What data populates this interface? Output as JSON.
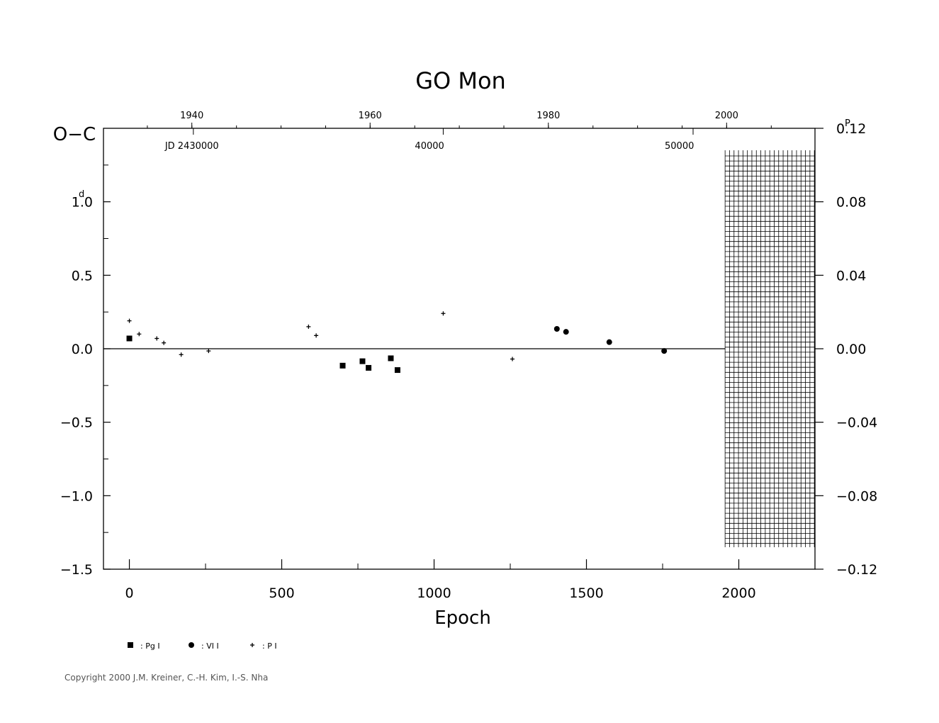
{
  "chart_data": {
    "type": "scatter",
    "title": "GO Mon",
    "xlabel": "Epoch",
    "ylabel": "O−C",
    "y_unit": "d",
    "y2_unit": "P",
    "xlim": [
      -85,
      2250
    ],
    "ylim": [
      -1.5,
      1.5
    ],
    "y2lim": [
      -0.12,
      0.12
    ],
    "x_ticks": [
      0,
      500,
      1000,
      1500,
      2000
    ],
    "y_ticks": [
      -1.5,
      -1.0,
      -0.5,
      0.0,
      0.5,
      1.0
    ],
    "y_tick_labels": [
      "−1.5",
      "−1.0",
      "−0.5",
      "0.0",
      "0.5",
      "1.0"
    ],
    "y2_ticks": [
      -0.12,
      -0.08,
      -0.04,
      0.0,
      0.04,
      0.08,
      0.12
    ],
    "y2_tick_labels": [
      "−0.12",
      "−0.08",
      "−0.04",
      "0.00",
      "0.04",
      "0.08",
      "0.12"
    ],
    "year_ticks": [
      {
        "label": "1940",
        "epoch": 205
      },
      {
        "label": "1960",
        "epoch": 790
      },
      {
        "label": "1980",
        "epoch": 1375
      },
      {
        "label": "2000",
        "epoch": 1960
      }
    ],
    "jd_ticks": [
      {
        "label": "JD  2430000",
        "epoch": 210
      },
      {
        "label": "40000",
        "epoch": 1030
      },
      {
        "label": "50000",
        "epoch": 1850
      }
    ],
    "zero_line": true,
    "future_region_start_epoch": 1955,
    "series": [
      {
        "name": ": Pg I",
        "marker": "square",
        "x": [
          0,
          700,
          765,
          785,
          858,
          880
        ],
        "y": [
          0.07,
          -0.115,
          -0.085,
          -0.13,
          -0.065,
          -0.145
        ]
      },
      {
        "name": ": VI I",
        "marker": "circle",
        "x": [
          1403,
          1433,
          1575,
          1755
        ],
        "y": [
          0.135,
          0.115,
          0.045,
          -0.015
        ]
      },
      {
        "name": ": P I",
        "marker": "plus",
        "x": [
          0,
          32,
          90,
          113,
          170,
          260,
          588,
          613,
          1030,
          1257
        ],
        "y": [
          0.19,
          0.1,
          0.07,
          0.04,
          -0.04,
          -0.015,
          0.15,
          0.09,
          0.24,
          -0.07
        ]
      }
    ]
  },
  "copyright": "Copyright 2000 J.M. Kreiner, C.-H. Kim, I.-S. Nha"
}
